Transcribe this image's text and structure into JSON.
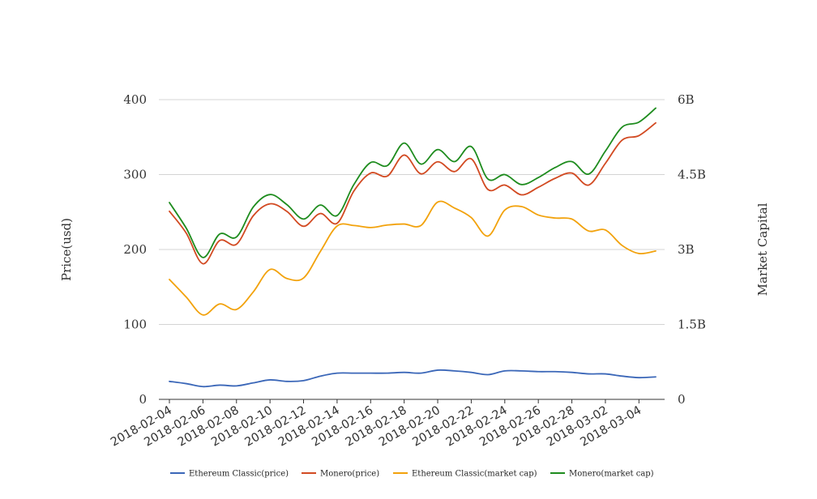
{
  "chart_data": {
    "type": "line",
    "title": "",
    "xlabel": "",
    "ylabel": "Price(usd)",
    "y2label": "Market Capital",
    "ylim": [
      0,
      400
    ],
    "y2lim": [
      0,
      6000000000
    ],
    "y_ticks": [
      {
        "value": 0,
        "label": "0"
      },
      {
        "value": 100,
        "label": "100"
      },
      {
        "value": 200,
        "label": "200"
      },
      {
        "value": 300,
        "label": "300"
      },
      {
        "value": 400,
        "label": "400"
      }
    ],
    "y2_ticks": [
      {
        "value": 0,
        "label": "0"
      },
      {
        "value": 1500000000,
        "label": "1.5B"
      },
      {
        "value": 3000000000,
        "label": "3B"
      },
      {
        "value": 4500000000,
        "label": "4.5B"
      },
      {
        "value": 6000000000,
        "label": "6B"
      }
    ],
    "x_tick_labels": [
      "2018-02-04",
      "2018-02-06",
      "2018-02-08",
      "2018-02-10",
      "2018-02-12",
      "2018-02-14",
      "2018-02-16",
      "2018-02-18",
      "2018-02-20",
      "2018-02-22",
      "2018-02-24",
      "2018-02-26",
      "2018-02-28",
      "2018-03-02",
      "2018-03-04"
    ],
    "x": [
      "2018-02-04",
      "2018-02-05",
      "2018-02-06",
      "2018-02-07",
      "2018-02-08",
      "2018-02-09",
      "2018-02-10",
      "2018-02-11",
      "2018-02-12",
      "2018-02-13",
      "2018-02-14",
      "2018-02-15",
      "2018-02-16",
      "2018-02-17",
      "2018-02-18",
      "2018-02-19",
      "2018-02-20",
      "2018-02-21",
      "2018-02-22",
      "2018-02-23",
      "2018-02-24",
      "2018-02-25",
      "2018-02-26",
      "2018-02-27",
      "2018-02-28",
      "2018-03-01",
      "2018-03-02",
      "2018-03-03",
      "2018-03-04",
      "2018-03-05"
    ],
    "grid": true,
    "legend_position": "bottom-center",
    "series": [
      {
        "name": "Ethereum Classic(price)",
        "axis": "left",
        "color": "#3b67b8",
        "values": [
          24,
          21,
          17,
          19,
          18,
          22,
          26,
          24,
          25,
          31,
          35,
          35,
          35,
          35,
          36,
          35,
          39,
          38,
          36,
          33,
          38,
          38,
          37,
          37,
          36,
          34,
          34,
          31,
          29,
          30
        ]
      },
      {
        "name": "Monero(price)",
        "axis": "left",
        "color": "#d24a22",
        "values": [
          251,
          222,
          181,
          212,
          207,
          245,
          261,
          251,
          231,
          248,
          235,
          278,
          302,
          298,
          326,
          301,
          317,
          304,
          321,
          280,
          286,
          273,
          283,
          295,
          302,
          286,
          315,
          346,
          352,
          369
        ]
      },
      {
        "name": "Ethereum Classic(market cap)",
        "axis": "right",
        "color": "#f2a20c",
        "values": [
          2400000000,
          2050000000,
          1690000000,
          1910000000,
          1800000000,
          2150000000,
          2600000000,
          2420000000,
          2430000000,
          2960000000,
          3470000000,
          3480000000,
          3440000000,
          3490000000,
          3510000000,
          3480000000,
          3950000000,
          3830000000,
          3640000000,
          3270000000,
          3790000000,
          3860000000,
          3690000000,
          3630000000,
          3610000000,
          3370000000,
          3390000000,
          3080000000,
          2920000000,
          2970000000
        ]
      },
      {
        "name": "Monero(market cap)",
        "axis": "right",
        "color": "#1e8c1e",
        "values": [
          3940000000,
          3430000000,
          2840000000,
          3310000000,
          3250000000,
          3850000000,
          4100000000,
          3900000000,
          3610000000,
          3890000000,
          3680000000,
          4300000000,
          4740000000,
          4680000000,
          5130000000,
          4710000000,
          5000000000,
          4760000000,
          5060000000,
          4410000000,
          4500000000,
          4300000000,
          4440000000,
          4640000000,
          4760000000,
          4510000000,
          4970000000,
          5450000000,
          5550000000,
          5830000000
        ]
      }
    ]
  }
}
